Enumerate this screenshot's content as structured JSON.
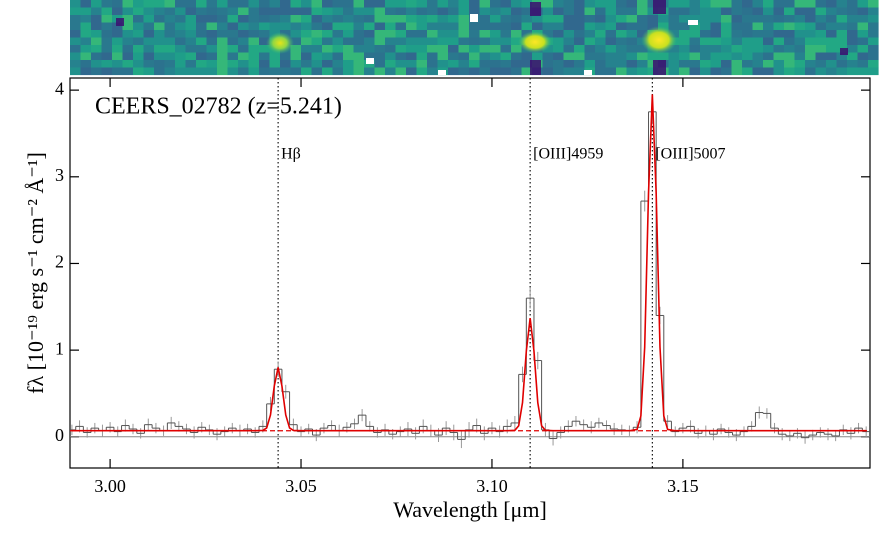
{
  "chart_data": {
    "type": "step",
    "annotation": "CEERS_02782 (z=5.241)",
    "xlabel": "Wavelength [μm]",
    "ylabel": "fλ [10⁻¹⁹ erg s⁻¹ cm⁻² Å⁻¹]",
    "xlim": [
      2.9895,
      3.199
    ],
    "xticks": [
      {
        "value": 3,
        "label": "3.00"
      },
      3.05,
      {
        "value": 3.1,
        "label": "3.10"
      },
      3.15
    ],
    "ylim": [
      -0.36,
      4.14
    ],
    "yticks": [
      0,
      1,
      2,
      3,
      4
    ],
    "color": "#555555",
    "x": [
      2.99,
      2.992,
      2.994,
      2.996,
      2.998,
      3.0,
      3.002,
      3.004,
      3.006,
      3.008,
      3.01,
      3.012,
      3.014,
      3.016,
      3.018,
      3.02,
      3.022,
      3.024,
      3.026,
      3.028,
      3.03,
      3.032,
      3.034,
      3.036,
      3.038,
      3.04,
      3.042,
      3.044,
      3.046,
      3.048,
      3.05,
      3.052,
      3.054,
      3.056,
      3.058,
      3.06,
      3.062,
      3.064,
      3.066,
      3.068,
      3.07,
      3.072,
      3.074,
      3.076,
      3.078,
      3.08,
      3.082,
      3.084,
      3.086,
      3.088,
      3.09,
      3.092,
      3.094,
      3.096,
      3.098,
      3.1,
      3.102,
      3.104,
      3.106,
      3.108,
      3.11,
      3.112,
      3.114,
      3.116,
      3.118,
      3.12,
      3.122,
      3.124,
      3.126,
      3.128,
      3.13,
      3.132,
      3.134,
      3.136,
      3.138,
      3.14,
      3.142,
      3.144,
      3.146,
      3.148,
      3.15,
      3.152,
      3.154,
      3.156,
      3.158,
      3.16,
      3.162,
      3.164,
      3.166,
      3.168,
      3.17,
      3.172,
      3.174,
      3.176,
      3.178,
      3.18,
      3.182,
      3.184,
      3.186,
      3.188,
      3.19,
      3.192,
      3.194,
      3.196,
      3.198
    ],
    "values": [
      0.08,
      0.12,
      0.05,
      0.1,
      0.07,
      0.11,
      0.06,
      0.13,
      0.09,
      0.04,
      0.14,
      0.1,
      0.07,
      0.16,
      0.12,
      0.09,
      0.05,
      0.11,
      0.08,
      0.03,
      0.06,
      0.1,
      0.07,
      0.09,
      0.05,
      0.12,
      0.38,
      0.78,
      0.52,
      0.14,
      0.06,
      0.09,
      0.02,
      0.1,
      0.13,
      0.07,
      0.11,
      0.15,
      0.25,
      0.12,
      0.05,
      0.08,
      0.03,
      0.06,
      0.09,
      0.04,
      0.12,
      0.07,
      0.02,
      0.1,
      0.05,
      -0.03,
      0.08,
      0.13,
      0.04,
      0.1,
      0.06,
      0.12,
      0.16,
      0.72,
      1.6,
      0.88,
      0.08,
      -0.02,
      0.05,
      0.12,
      0.18,
      0.14,
      0.11,
      0.16,
      0.13,
      0.09,
      0.08,
      0.07,
      0.11,
      2.72,
      3.75,
      1.4,
      0.18,
      0.06,
      0.1,
      0.12,
      0.04,
      0.07,
      0.03,
      0.09,
      0.05,
      0.02,
      0.06,
      0.12,
      0.28,
      0.27,
      0.1,
      0.03,
      0.01,
      0.04,
      -0.01,
      0.02,
      0.05,
      0.03,
      0.01,
      0.08,
      0.04,
      0.1,
      0.06
    ],
    "errors": [
      0.06,
      0.07,
      0.06,
      0.06,
      0.07,
      0.06,
      0.06,
      0.07,
      0.06,
      0.06,
      0.07,
      0.06,
      0.06,
      0.07,
      0.06,
      0.06,
      0.07,
      0.06,
      0.06,
      0.07,
      0.06,
      0.06,
      0.07,
      0.06,
      0.06,
      0.07,
      0.08,
      0.09,
      0.08,
      0.07,
      0.06,
      0.06,
      0.07,
      0.06,
      0.06,
      0.07,
      0.06,
      0.06,
      0.07,
      0.06,
      0.06,
      0.07,
      0.06,
      0.06,
      0.08,
      0.07,
      0.08,
      0.07,
      0.08,
      0.08,
      0.09,
      0.1,
      0.09,
      0.08,
      0.08,
      0.07,
      0.07,
      0.08,
      0.08,
      0.09,
      0.12,
      0.1,
      0.08,
      0.08,
      0.07,
      0.07,
      0.06,
      0.06,
      0.07,
      0.06,
      0.06,
      0.07,
      0.06,
      0.06,
      0.07,
      0.12,
      0.14,
      0.1,
      0.07,
      0.06,
      0.06,
      0.07,
      0.06,
      0.06,
      0.07,
      0.06,
      0.06,
      0.07,
      0.06,
      0.06,
      0.07,
      0.06,
      0.06,
      0.07,
      0.06,
      0.06,
      0.07,
      0.06,
      0.06,
      0.07,
      0.06,
      0.06,
      0.07,
      0.06,
      0.06
    ],
    "model": {
      "color": "#e00000",
      "x": [
        2.99,
        3.036,
        3.038,
        3.04,
        3.041,
        3.042,
        3.043,
        3.044,
        3.045,
        3.046,
        3.047,
        3.048,
        3.05,
        3.052,
        3.102,
        3.104,
        3.106,
        3.107,
        3.108,
        3.109,
        3.11,
        3.111,
        3.112,
        3.113,
        3.114,
        3.116,
        3.118,
        3.134,
        3.136,
        3.138,
        3.139,
        3.14,
        3.141,
        3.142,
        3.143,
        3.144,
        3.145,
        3.146,
        3.148,
        3.15,
        3.198
      ],
      "values": [
        0.07,
        0.07,
        0.07,
        0.073,
        0.102,
        0.252,
        0.586,
        0.8,
        0.586,
        0.252,
        0.102,
        0.073,
        0.07,
        0.07,
        0.07,
        0.07,
        0.075,
        0.127,
        0.394,
        0.989,
        1.37,
        0.989,
        0.394,
        0.127,
        0.075,
        0.07,
        0.07,
        0.07,
        0.07,
        0.085,
        0.241,
        1.036,
        2.813,
        3.95,
        2.813,
        1.036,
        0.241,
        0.085,
        0.07,
        0.07,
        0.07
      ]
    },
    "continuum": 0.07,
    "lines": [
      {
        "label": "Hβ",
        "x": 3.044
      },
      {
        "label": "[OIII]4959",
        "x": 3.11
      },
      {
        "label": "[OIII]5007",
        "x": 3.142
      }
    ]
  }
}
